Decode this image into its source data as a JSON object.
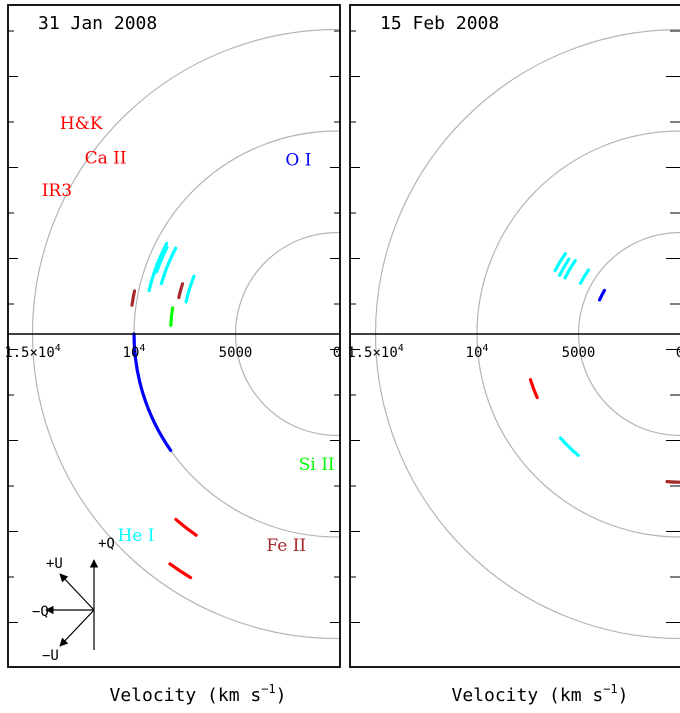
{
  "figure": {
    "xlabel_text": "Velocity (km s",
    "xlabel_exp": "−1",
    "xlabel_close": ")"
  },
  "colors": {
    "frame": "#000000",
    "circle": "#b4b4b4",
    "Ca": "#ff0000",
    "O": "#0000ff",
    "He": "#00ffff",
    "Si": "#00ff00",
    "Fe": "#a52a2a"
  },
  "chart_data": [
    {
      "type": "scatter",
      "title": "31 Jan 2008",
      "circle_radii": [
        5000,
        10000,
        15000
      ],
      "tick_labels": [
        {
          "text": "1.5×10",
          "exp": "4",
          "v": 15000
        },
        {
          "text": "10",
          "exp": "4",
          "v": 10000
        },
        {
          "text": "5000",
          "v": 5000
        },
        {
          "text": "0",
          "v": 0
        }
      ],
      "series": [
        {
          "name": "Ca II H&K",
          "color": "Ca",
          "arcs": [
            {
              "r": 14000,
              "a1": 144,
              "a2": 149
            }
          ]
        },
        {
          "name": "Ca II IR3",
          "color": "Ca",
          "arcs": [
            {
              "r": 12100,
              "a1": 139,
              "a2": 145
            }
          ]
        },
        {
          "name": "O I",
          "color": "O",
          "arcs": [
            {
              "r": 10000,
              "a1": 90,
              "a2": 125
            }
          ]
        },
        {
          "name": "He I",
          "color": "He",
          "arcs": [
            {
              "r": 9500,
              "a1": 62,
              "a2": 77
            },
            {
              "r": 9000,
              "a1": 62,
              "a2": 74
            },
            {
              "r": 7600,
              "a1": 68,
              "a2": 78
            },
            {
              "r": 9400,
              "a1": 63,
              "a2": 71
            }
          ]
        },
        {
          "name": "Si II",
          "color": "Si",
          "arcs": [
            {
              "r": 8200,
              "a1": 81,
              "a2": 87
            }
          ]
        },
        {
          "name": "Fe II",
          "color": "Fe",
          "arcs": [
            {
              "r": 8000,
              "a1": 72,
              "a2": 77
            },
            {
              "r": 10200,
              "a1": 78,
              "a2": 82
            }
          ]
        }
      ],
      "annotations": [
        {
          "text": "H&K",
          "color": "Ca",
          "x": 12600,
          "y": 10100
        },
        {
          "text": "Ca II",
          "color": "Ca",
          "x": 11400,
          "y": 8400
        },
        {
          "text": "IR3",
          "color": "Ca",
          "x": 13800,
          "y": 6800
        },
        {
          "text": "O I",
          "color": "O",
          "x": 1900,
          "y": 8300
        },
        {
          "text": "He I",
          "color": "He",
          "x": 9900,
          "y": -10200
        },
        {
          "text": "Si II",
          "color": "Si",
          "x": 1000,
          "y": -6700
        },
        {
          "text": "Fe II",
          "color": "Fe",
          "x": 2500,
          "y": -10700
        }
      ],
      "qu_key": {
        "plus_q": "+Q",
        "minus_q": "−Q",
        "plus_u": "+U",
        "minus_u": "−U"
      }
    },
    {
      "type": "scatter",
      "title": "15 Feb 2008",
      "circle_radii": [
        5000,
        10000,
        15000
      ],
      "tick_labels": [
        {
          "text": "1.5×10",
          "exp": "4",
          "v": 15000
        },
        {
          "text": "10",
          "exp": "4",
          "v": 10000
        },
        {
          "text": "5000",
          "v": 5000
        },
        {
          "text": "0",
          "v": 0
        }
      ],
      "series": [
        {
          "name": "Ca II",
          "color": "Ca",
          "arcs": [
            {
              "r": 7700,
              "a1": 107,
              "a2": 114
            }
          ]
        },
        {
          "name": "He I",
          "color": "He",
          "arcs": [
            {
              "r": 7800,
              "a1": 131,
              "a2": 140
            },
            {
              "r": 5500,
              "a1": 55,
              "a2": 63
            },
            {
              "r": 6900,
              "a1": 55,
              "a2": 63
            },
            {
              "r": 6300,
              "a1": 55,
              "a2": 64
            },
            {
              "r": 6600,
              "a1": 56,
              "a2": 64
            }
          ]
        },
        {
          "name": "O I",
          "color": "O",
          "arcs": [
            {
              "r": 4300,
              "a1": 60,
              "a2": 67
            }
          ]
        },
        {
          "name": "Fe II",
          "color": "Fe",
          "arcs": [
            {
              "r": 7300,
              "a1": 175,
              "a2": 183
            }
          ]
        }
      ],
      "annotations": []
    }
  ]
}
